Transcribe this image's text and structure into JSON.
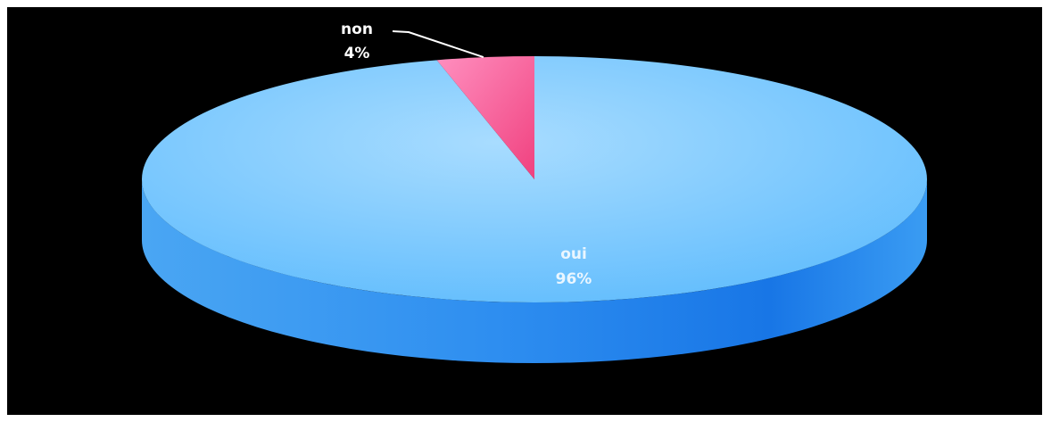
{
  "chart_data": {
    "type": "pie",
    "three_d": true,
    "categories": [
      "oui",
      "non"
    ],
    "values": [
      96,
      4
    ],
    "data_labels": [
      "96%",
      "4%"
    ],
    "colors": {
      "oui": "#6cc4ff",
      "non": "#ff5fa0"
    },
    "background": "#000000",
    "legend": "none"
  }
}
